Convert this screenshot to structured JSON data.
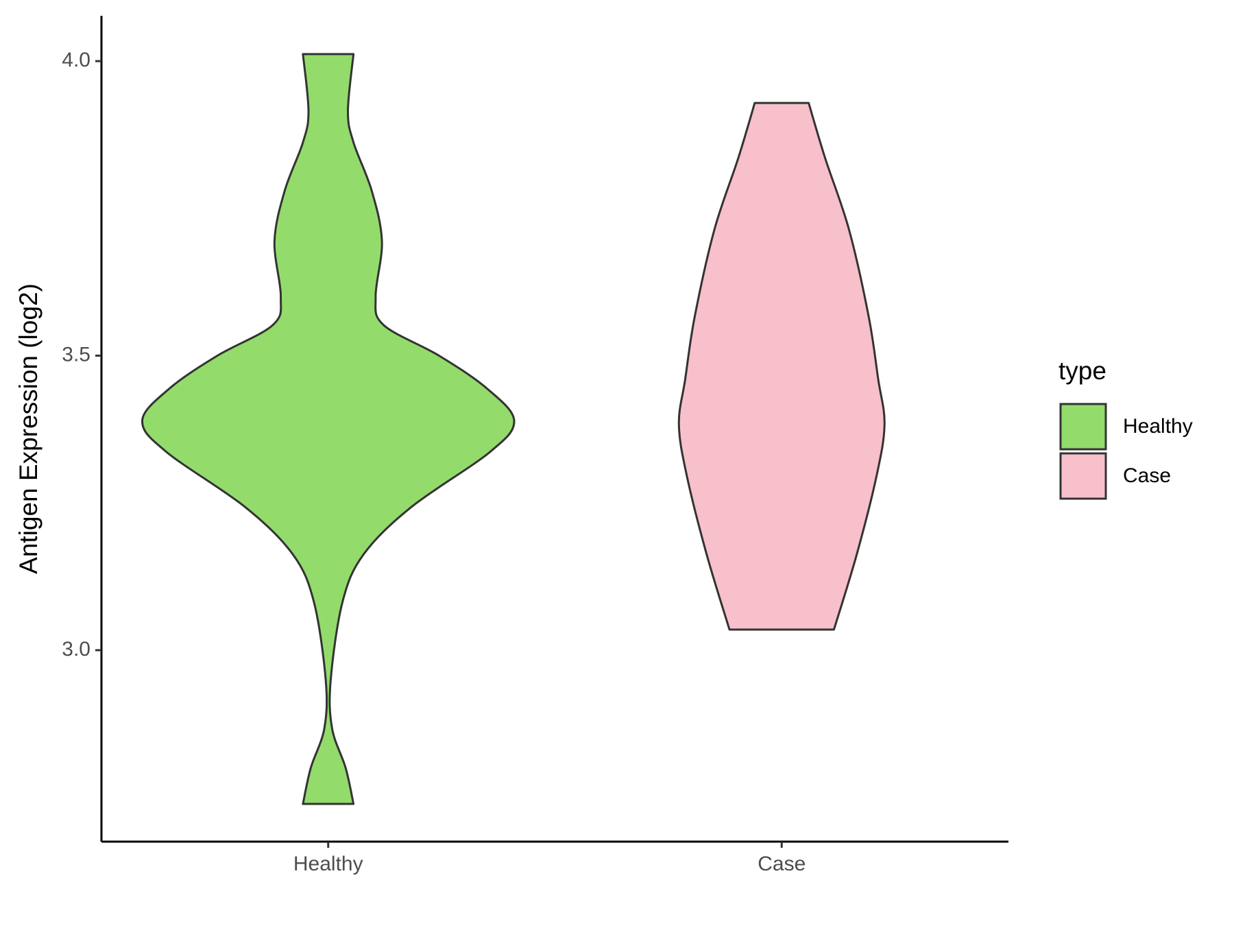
{
  "chart_data": {
    "type": "violin",
    "y_label": "Antigen Expression (log2)",
    "categories": [
      "Healthy",
      "Case"
    ],
    "ylim": [
      2.675,
      4.077
    ],
    "yticks": [
      {
        "value": 3.0,
        "label": "3.0"
      },
      {
        "value": 3.5,
        "label": "3.5"
      },
      {
        "value": 4.0,
        "label": "4.0"
      }
    ],
    "legend_title": "type",
    "legend_position": "right",
    "series": [
      {
        "name": "Healthy",
        "color": "#93dc6b",
        "y": [
          2.739,
          2.8,
          2.867,
          2.948,
          3.082,
          3.163,
          3.243,
          3.337,
          3.39,
          3.445,
          3.5,
          3.552,
          3.6,
          3.694,
          3.78,
          3.862,
          3.915,
          4.012
        ],
        "widths": [
          0.136,
          0.094,
          0.021,
          0.013,
          0.077,
          0.191,
          0.447,
          0.872,
          1.0,
          0.851,
          0.596,
          0.298,
          0.255,
          0.289,
          0.234,
          0.136,
          0.106,
          0.136
        ]
      },
      {
        "name": "Case",
        "color": "#f7c0cb",
        "y": [
          3.035,
          3.163,
          3.297,
          3.384,
          3.46,
          3.566,
          3.714,
          3.835,
          3.929
        ],
        "widths": [
          0.281,
          0.404,
          0.511,
          0.553,
          0.519,
          0.468,
          0.362,
          0.234,
          0.145
        ]
      }
    ]
  }
}
